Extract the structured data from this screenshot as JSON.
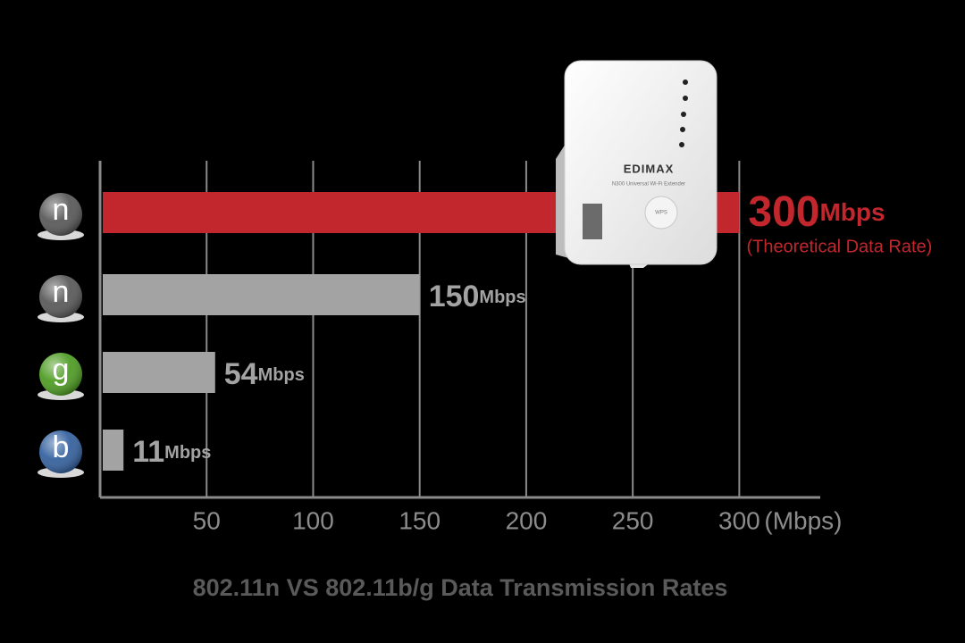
{
  "chart_data": {
    "type": "hbar",
    "title": "802.11n VS 802.11b/g Data Transmission Rates",
    "x_unit_label": "(Mbps)",
    "annotation": "(Theoretical Data Rate)",
    "categories": [
      "n",
      "n",
      "g",
      "b"
    ],
    "category_colors": [
      "#555555",
      "#555555",
      "#4a9a1e",
      "#2f5d9c"
    ],
    "values": [
      300,
      150,
      54,
      11
    ],
    "value_labels": [
      "300Mbps",
      "150Mbps",
      "54Mbps",
      "11Mbps"
    ],
    "colors": [
      "#c1272d",
      "#a3a3a3",
      "#a3a3a3",
      "#a3a3a3"
    ],
    "xlim": [
      0,
      338
    ],
    "xticks": [
      50,
      100,
      150,
      200,
      250,
      300
    ],
    "grid": true
  },
  "device": {
    "brand": "EDIMAX",
    "model": "N300 Universal Wi-Fi Extender",
    "button": "WPS"
  }
}
